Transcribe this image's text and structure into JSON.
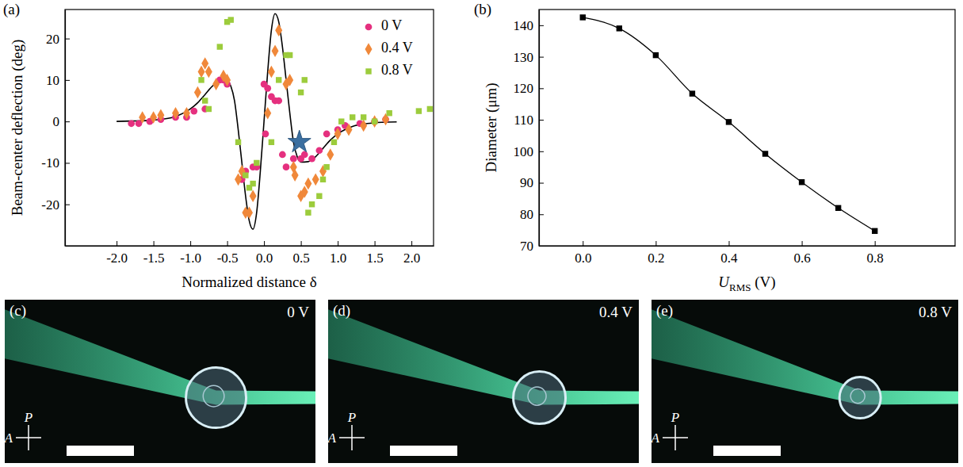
{
  "chart_data": [
    {
      "type": "scatter",
      "title": "(a)",
      "xlabel": "Normalized distance δ",
      "ylabel": "Beam-center deflection (deg)",
      "xlim": [
        -2.7,
        2.3
      ],
      "ylim": [
        -30,
        27
      ],
      "xticks": [
        {
          "value": -2,
          "label": "-2.0"
        },
        -1.5,
        {
          "value": -1,
          "label": "-1.0"
        },
        -0.5,
        {
          "value": 0,
          "label": "0.0"
        },
        0.5,
        {
          "value": 1,
          "label": "1.0"
        },
        1.5,
        {
          "value": 2,
          "label": "2.0"
        }
      ],
      "yticks": [
        -20,
        -10,
        0,
        10,
        20
      ],
      "legend": "upper right",
      "series": [
        {
          "type": "line",
          "color": "#000000",
          "line_style": "solid",
          "x": [
            -2.0,
            -1.8,
            -1.6,
            -1.4,
            -1.2,
            -1.0,
            -0.9,
            -0.8,
            -0.7,
            -0.6,
            -0.5,
            -0.45,
            -0.4,
            -0.35,
            -0.3,
            -0.25,
            -0.2,
            -0.15,
            -0.1,
            -0.05,
            0,
            0.05,
            0.1,
            0.15,
            0.2,
            0.25,
            0.3,
            0.35,
            0.4,
            0.45,
            0.5,
            0.6,
            0.7,
            0.8,
            0.9,
            1.0,
            1.2,
            1.4,
            1.6,
            1.8
          ],
          "values": [
            0,
            0.1,
            0.2,
            0.5,
            1.2,
            3,
            4.5,
            6.5,
            8.5,
            9.7,
            9.8,
            8.5,
            5,
            -2,
            -10,
            -18,
            -24,
            -26,
            -22,
            -12,
            0,
            12,
            22,
            26,
            24,
            18,
            10,
            2,
            -5,
            -8.5,
            -9.8,
            -9.7,
            -8.5,
            -6.5,
            -4.5,
            -3,
            -1.2,
            -0.5,
            -0.2,
            -0.1
          ]
        },
        {
          "name": "0 V",
          "type": "scatter",
          "marker": "circle",
          "color": "#e5307f",
          "x": [
            -1.8,
            -1.7,
            -1.55,
            -1.4,
            -1.2,
            -1.05,
            -0.95,
            -0.8,
            -0.6,
            -0.55,
            -0.5,
            -0.3,
            -0.25,
            -0.15,
            -0.1,
            0,
            0.02,
            0.05,
            0.1,
            0.15,
            0.2,
            0.25,
            0.3,
            0.4,
            0.5,
            0.55,
            0.65,
            0.75,
            0.85,
            1.0,
            1.1,
            1.3,
            1.5,
            1.65
          ],
          "values": [
            -0.5,
            -0.5,
            0,
            0.5,
            1,
            1,
            2.5,
            3,
            10,
            10,
            9,
            -14,
            -12,
            -11,
            -11,
            9,
            -3,
            8,
            6,
            5,
            5,
            -8,
            -11,
            -9,
            -9,
            -8,
            -9,
            -7,
            -3,
            -2,
            -1,
            -0.5,
            0,
            0.5
          ]
        },
        {
          "name": "0.4 V",
          "type": "scatter",
          "marker": "diamond",
          "color": "#f0883a",
          "x": [
            -1.65,
            -1.5,
            -1.4,
            -1.2,
            -1.05,
            -0.9,
            -0.85,
            -0.8,
            -0.75,
            -0.65,
            -0.55,
            -0.5,
            -0.35,
            -0.3,
            -0.25,
            -0.2,
            -0.15,
            0.05,
            0.1,
            0.15,
            0.2,
            0.3,
            0.35,
            0.4,
            0.42,
            0.5,
            0.55,
            0.6,
            0.7,
            0.8,
            0.9,
            1.0,
            1.15,
            1.35,
            1.5,
            1.65
          ],
          "values": [
            1,
            1,
            1.5,
            2,
            2,
            7,
            12,
            14,
            12,
            9,
            11,
            10,
            -14,
            -12,
            -22,
            -22,
            -18,
            2,
            12,
            17,
            22,
            9,
            10,
            -11,
            -13,
            -18,
            -17,
            -15,
            -14,
            -12,
            -8,
            -3,
            -2,
            -1,
            0,
            0.5
          ]
        },
        {
          "name": "0.8 V",
          "type": "scatter",
          "marker": "square",
          "color": "#9ccc3c",
          "x": [
            -0.85,
            -0.8,
            -0.75,
            -0.6,
            -0.5,
            -0.45,
            -0.35,
            -0.25,
            -0.2,
            -0.15,
            -0.1,
            0.1,
            0.2,
            0.3,
            0.35,
            0.5,
            0.55,
            0.6,
            0.65,
            0.75,
            0.8,
            0.85,
            0.95,
            1.05,
            1.2,
            1.35,
            1.5,
            1.7,
            2.1,
            2.25
          ],
          "values": [
            10,
            5,
            3,
            18,
            24,
            24.5,
            -5,
            -13,
            -16,
            -15,
            -10,
            -5,
            10,
            16,
            16,
            7,
            10,
            -22,
            -20,
            -18,
            -14,
            -11,
            -5,
            0,
            1,
            1,
            0,
            2,
            2.5,
            3
          ]
        },
        {
          "type": "scatter",
          "marker": "star",
          "color": "#3b6fa0",
          "x": [
            0.48
          ],
          "values": [
            -5
          ]
        }
      ]
    },
    {
      "type": "line",
      "title": "(b)",
      "xlabel": {
        "text": "U",
        "sub": "RMS",
        "after": " (V)"
      },
      "ylabel": "Diameter (μm)",
      "xlim": [
        -0.12,
        1.02
      ],
      "ylim": [
        70,
        145
      ],
      "xticks": [
        {
          "value": 0,
          "label": "0.0"
        },
        0.2,
        0.4,
        0.6,
        0.8
      ],
      "yticks": [
        70,
        80,
        90,
        100,
        110,
        120,
        130,
        140
      ],
      "series": [
        {
          "type": "line",
          "marker": "square",
          "color": "#000000",
          "line_style": "solid",
          "x": [
            0,
            0.1,
            0.2,
            0.3,
            0.4,
            0.5,
            0.6,
            0.7,
            0.8
          ],
          "values": [
            142.5,
            139,
            130.5,
            118.3,
            109.3,
            99.2,
            90.2,
            82,
            74.7
          ]
        }
      ]
    }
  ],
  "images": [
    {
      "letter": "(c)",
      "label": "0 V",
      "polarizer": "P",
      "analyzer": "A"
    },
    {
      "letter": "(d)",
      "label": "0.4 V",
      "polarizer": "P",
      "analyzer": "A"
    },
    {
      "letter": "(e)",
      "label": "0.8 V",
      "polarizer": "P",
      "analyzer": "A"
    }
  ]
}
